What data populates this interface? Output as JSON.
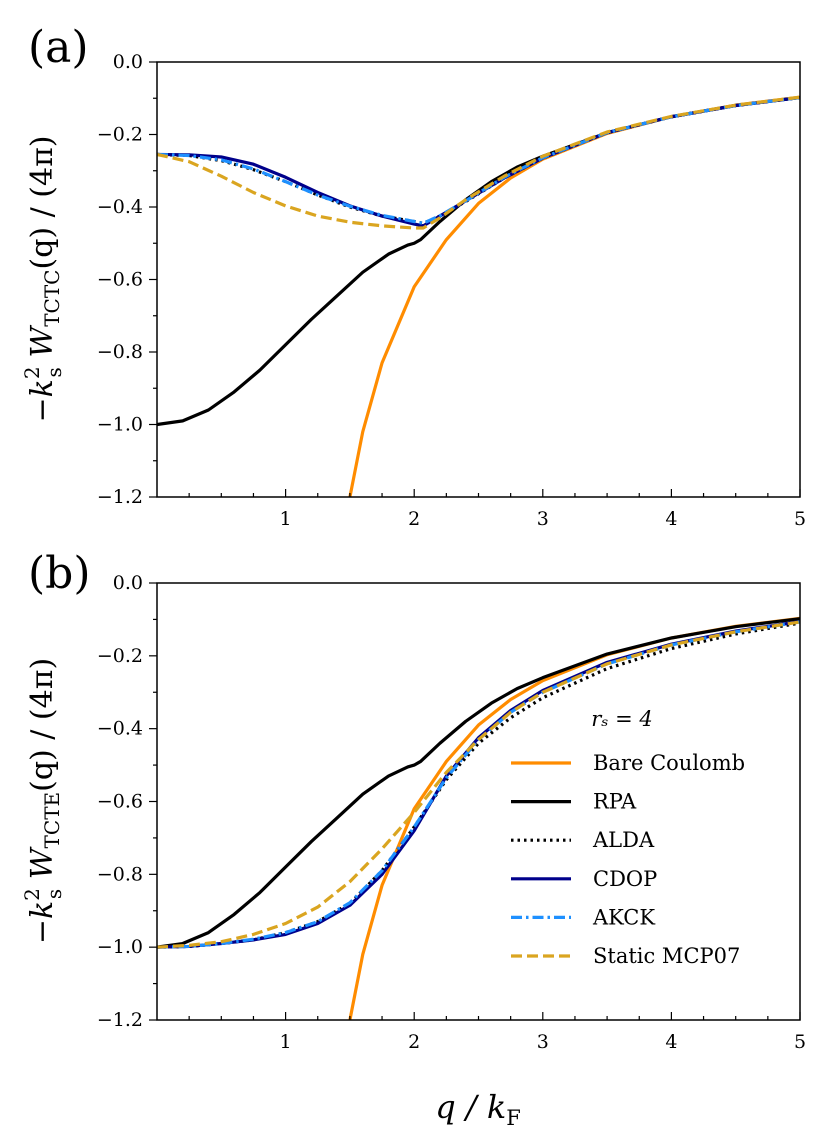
{
  "chart_data": [
    {
      "type": "line",
      "panel": "(a)",
      "ylabel_prefix": "−k",
      "ylabel_sup": "2",
      "ylabel_sub1": "s",
      "ylabel_mid": " W",
      "ylabel_sub2": "TCTC",
      "ylabel_suffix": "(q) / (4π)",
      "xlim": [
        0,
        5
      ],
      "ylim": [
        -1.2,
        0.0
      ],
      "xticks": [
        1,
        2,
        3,
        4,
        5
      ],
      "xtick_labels": [
        "1",
        "2",
        "3",
        "4",
        "5"
      ],
      "yticks": [
        0.0,
        -0.2,
        -0.4,
        -0.6,
        -0.8,
        -1.0,
        -1.2
      ],
      "ytick_labels": [
        "0.0",
        "−0.2",
        "−0.4",
        "−0.6",
        "−0.8",
        "−1.0",
        "−1.2"
      ],
      "series": [
        {
          "name": "Bare Coulomb",
          "style": "solid",
          "color": "#ff8c00",
          "x": [
            1.5,
            1.6,
            1.75,
            2.0,
            2.25,
            2.5,
            2.75,
            3.0,
            3.5,
            4.0,
            4.5,
            5.0
          ],
          "y": [
            -1.2,
            -1.02,
            -0.83,
            -0.62,
            -0.49,
            -0.39,
            -0.32,
            -0.268,
            -0.197,
            -0.151,
            -0.119,
            -0.097
          ]
        },
        {
          "name": "RPA",
          "style": "solid",
          "color": "#000000",
          "x": [
            0.0,
            0.2,
            0.4,
            0.6,
            0.8,
            1.0,
            1.2,
            1.4,
            1.6,
            1.8,
            1.95,
            2.0,
            2.05,
            2.2,
            2.4,
            2.6,
            2.8,
            3.0,
            3.5,
            4.0,
            4.5,
            5.0
          ],
          "y": [
            -1.0,
            -0.99,
            -0.96,
            -0.91,
            -0.85,
            -0.78,
            -0.71,
            -0.645,
            -0.58,
            -0.53,
            -0.505,
            -0.5,
            -0.49,
            -0.44,
            -0.38,
            -0.33,
            -0.29,
            -0.26,
            -0.195,
            -0.151,
            -0.12,
            -0.098
          ]
        },
        {
          "name": "ALDA",
          "style": "dotted",
          "color": "#000000",
          "x": [
            0.0,
            0.25,
            0.5,
            0.75,
            1.0,
            1.25,
            1.5,
            1.75,
            2.0,
            2.07,
            2.2,
            2.4,
            2.7,
            3.0,
            3.5,
            4.0,
            4.5,
            5.0
          ],
          "y": [
            -0.255,
            -0.258,
            -0.272,
            -0.297,
            -0.33,
            -0.367,
            -0.4,
            -0.425,
            -0.44,
            -0.445,
            -0.425,
            -0.385,
            -0.32,
            -0.265,
            -0.195,
            -0.151,
            -0.12,
            -0.098
          ]
        },
        {
          "name": "CDOP",
          "style": "solid",
          "color": "#00008b",
          "x": [
            0.0,
            0.25,
            0.5,
            0.75,
            1.0,
            1.25,
            1.5,
            1.75,
            2.0,
            2.07,
            2.2,
            2.4,
            2.7,
            3.0,
            3.5,
            4.0,
            4.5,
            5.0
          ],
          "y": [
            -0.255,
            -0.256,
            -0.262,
            -0.282,
            -0.318,
            -0.36,
            -0.397,
            -0.425,
            -0.447,
            -0.452,
            -0.425,
            -0.383,
            -0.32,
            -0.265,
            -0.195,
            -0.151,
            -0.12,
            -0.098
          ]
        },
        {
          "name": "AKCK",
          "style": "dashdot",
          "color": "#1e90ff",
          "x": [
            0.0,
            0.25,
            0.5,
            0.75,
            1.0,
            1.25,
            1.5,
            1.75,
            2.0,
            2.07,
            2.2,
            2.4,
            2.7,
            3.0,
            3.5,
            4.0,
            4.5,
            5.0
          ],
          "y": [
            -0.255,
            -0.258,
            -0.27,
            -0.295,
            -0.33,
            -0.367,
            -0.398,
            -0.423,
            -0.44,
            -0.445,
            -0.424,
            -0.383,
            -0.318,
            -0.264,
            -0.195,
            -0.151,
            -0.12,
            -0.098
          ]
        },
        {
          "name": "Static MCP07",
          "style": "dashed",
          "color": "#daa520",
          "x": [
            0.0,
            0.25,
            0.5,
            0.75,
            1.0,
            1.25,
            1.5,
            1.75,
            2.0,
            2.07,
            2.2,
            2.4,
            2.7,
            3.0,
            3.5,
            4.0,
            4.5,
            5.0
          ],
          "y": [
            -0.255,
            -0.275,
            -0.315,
            -0.36,
            -0.397,
            -0.425,
            -0.442,
            -0.452,
            -0.458,
            -0.458,
            -0.43,
            -0.38,
            -0.315,
            -0.26,
            -0.193,
            -0.15,
            -0.119,
            -0.097
          ]
        }
      ]
    },
    {
      "type": "line",
      "panel": "(b)",
      "ylabel_prefix": "−k",
      "ylabel_sup": "2",
      "ylabel_sub1": "s",
      "ylabel_mid": " W",
      "ylabel_sub2": "TCTE",
      "ylabel_suffix": "(q) / (4π)",
      "xlabel": "q / k",
      "xlabel_sub": "F",
      "xlim": [
        0,
        5
      ],
      "ylim": [
        -1.2,
        0.0
      ],
      "xticks": [
        1,
        2,
        3,
        4,
        5
      ],
      "xtick_labels": [
        "1",
        "2",
        "3",
        "4",
        "5"
      ],
      "yticks": [
        0.0,
        -0.2,
        -0.4,
        -0.6,
        -0.8,
        -1.0,
        -1.2
      ],
      "ytick_labels": [
        "0.0",
        "−0.2",
        "−0.4",
        "−0.6",
        "−0.8",
        "−1.0",
        "−1.2"
      ],
      "legend_title": "rₛ = 4",
      "legend_location": "lower-right",
      "series": [
        {
          "name": "Bare Coulomb",
          "style": "solid",
          "color": "#ff8c00",
          "x": [
            1.5,
            1.6,
            1.75,
            2.0,
            2.25,
            2.5,
            2.75,
            3.0,
            3.5,
            4.0,
            4.5,
            5.0
          ],
          "y": [
            -1.2,
            -1.02,
            -0.83,
            -0.62,
            -0.49,
            -0.39,
            -0.32,
            -0.268,
            -0.197,
            -0.151,
            -0.119,
            -0.097
          ]
        },
        {
          "name": "RPA",
          "style": "solid",
          "color": "#000000",
          "x": [
            0.0,
            0.2,
            0.4,
            0.6,
            0.8,
            1.0,
            1.2,
            1.4,
            1.6,
            1.8,
            1.95,
            2.0,
            2.05,
            2.2,
            2.4,
            2.6,
            2.8,
            3.0,
            3.5,
            4.0,
            4.5,
            5.0
          ],
          "y": [
            -1.0,
            -0.99,
            -0.96,
            -0.91,
            -0.85,
            -0.78,
            -0.71,
            -0.645,
            -0.58,
            -0.53,
            -0.505,
            -0.5,
            -0.49,
            -0.44,
            -0.38,
            -0.33,
            -0.29,
            -0.26,
            -0.195,
            -0.151,
            -0.12,
            -0.098
          ]
        },
        {
          "name": "ALDA",
          "style": "dotted",
          "color": "#000000",
          "x": [
            0.0,
            0.25,
            0.5,
            0.75,
            1.0,
            1.25,
            1.5,
            1.75,
            2.0,
            2.25,
            2.5,
            2.75,
            3.0,
            3.5,
            4.0,
            4.5,
            5.0
          ],
          "y": [
            -1.0,
            -0.998,
            -0.99,
            -0.98,
            -0.96,
            -0.93,
            -0.88,
            -0.79,
            -0.67,
            -0.54,
            -0.44,
            -0.37,
            -0.315,
            -0.235,
            -0.18,
            -0.14,
            -0.11
          ]
        },
        {
          "name": "CDOP",
          "style": "solid",
          "color": "#00008b",
          "x": [
            0.0,
            0.25,
            0.5,
            0.75,
            1.0,
            1.25,
            1.5,
            1.75,
            2.0,
            2.25,
            2.5,
            2.75,
            3.0,
            3.5,
            4.0,
            4.5,
            5.0
          ],
          "y": [
            -1.0,
            -0.998,
            -0.99,
            -0.98,
            -0.965,
            -0.935,
            -0.885,
            -0.8,
            -0.68,
            -0.53,
            -0.425,
            -0.35,
            -0.295,
            -0.218,
            -0.168,
            -0.132,
            -0.106
          ]
        },
        {
          "name": "AKCK",
          "style": "dashdot",
          "color": "#1e90ff",
          "x": [
            0.0,
            0.25,
            0.5,
            0.75,
            1.0,
            1.25,
            1.5,
            1.75,
            2.0,
            2.25,
            2.5,
            2.75,
            3.0,
            3.5,
            4.0,
            4.5,
            5.0
          ],
          "y": [
            -1.0,
            -0.998,
            -0.99,
            -0.978,
            -0.96,
            -0.93,
            -0.878,
            -0.79,
            -0.67,
            -0.535,
            -0.43,
            -0.355,
            -0.3,
            -0.222,
            -0.17,
            -0.134,
            -0.107
          ]
        },
        {
          "name": "Static MCP07",
          "style": "dashed",
          "color": "#daa520",
          "x": [
            0.0,
            0.25,
            0.5,
            0.75,
            1.0,
            1.25,
            1.5,
            1.75,
            2.0,
            2.25,
            2.5,
            2.75,
            3.0,
            3.5,
            4.0,
            4.5,
            5.0
          ],
          "y": [
            -1.0,
            -0.995,
            -0.985,
            -0.965,
            -0.935,
            -0.89,
            -0.82,
            -0.73,
            -0.63,
            -0.52,
            -0.43,
            -0.355,
            -0.3,
            -0.222,
            -0.17,
            -0.134,
            -0.107
          ]
        }
      ]
    }
  ]
}
